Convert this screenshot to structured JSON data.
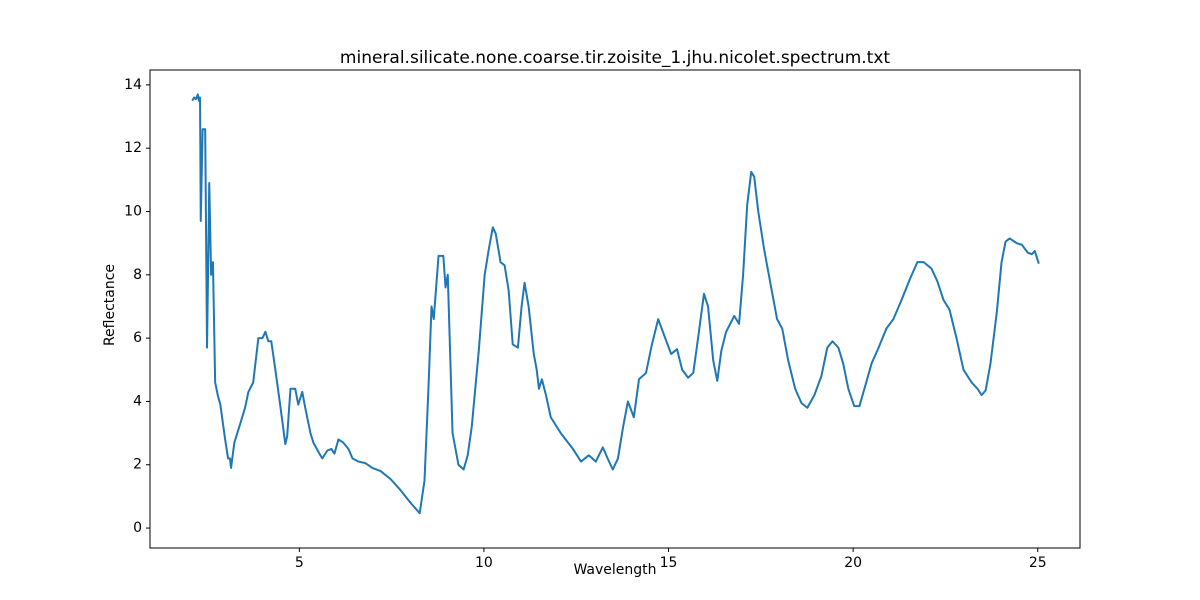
{
  "chart_data": {
    "type": "line",
    "title": "mineral.silicate.none.coarse.tir.zoisite_1.jhu.nicolet.spectrum.txt",
    "x_label": "Wavelength",
    "y_label": "Reflectance",
    "xlim": [
      0.955,
      26.145
    ],
    "ylim": [
      -0.63,
      14.47
    ],
    "xticks": [
      5,
      10,
      15,
      20,
      25
    ],
    "yticks": [
      0,
      2,
      4,
      6,
      8,
      10,
      12,
      14
    ],
    "grid": false,
    "x": [
      2.1,
      2.15,
      2.2,
      2.25,
      2.28,
      2.31,
      2.33,
      2.38,
      2.45,
      2.5,
      2.56,
      2.61,
      2.66,
      2.72,
      2.79,
      2.86,
      2.99,
      3.07,
      3.12,
      3.15,
      3.24,
      3.4,
      3.53,
      3.62,
      3.75,
      3.89,
      4.0,
      4.08,
      4.16,
      4.24,
      4.35,
      4.48,
      4.62,
      4.67,
      4.76,
      4.89,
      4.97,
      5.08,
      5.16,
      5.3,
      5.38,
      5.52,
      5.62,
      5.76,
      5.87,
      5.95,
      6.06,
      6.19,
      6.33,
      6.44,
      6.6,
      6.79,
      6.98,
      7.2,
      7.47,
      7.74,
      8.01,
      8.26,
      8.39,
      8.5,
      8.58,
      8.64,
      8.77,
      8.9,
      8.96,
      9.02,
      9.15,
      9.31,
      9.45,
      9.56,
      9.67,
      9.86,
      10.02,
      10.13,
      10.24,
      10.32,
      10.45,
      10.56,
      10.67,
      10.78,
      10.92,
      11.02,
      11.1,
      11.21,
      11.35,
      11.43,
      11.49,
      11.57,
      11.68,
      11.81,
      12.08,
      12.41,
      12.63,
      12.84,
      13.03,
      13.22,
      13.35,
      13.49,
      13.63,
      13.77,
      13.9,
      14.06,
      14.2,
      14.39,
      14.55,
      14.72,
      14.91,
      15.07,
      15.23,
      15.37,
      15.53,
      15.67,
      15.8,
      15.96,
      16.07,
      16.21,
      16.32,
      16.43,
      16.56,
      16.78,
      16.91,
      17.02,
      17.13,
      17.24,
      17.32,
      17.43,
      17.59,
      17.78,
      17.94,
      18.08,
      18.24,
      18.43,
      18.6,
      18.76,
      18.95,
      19.14,
      19.3,
      19.44,
      19.6,
      19.73,
      19.87,
      20.03,
      20.17,
      20.33,
      20.5,
      20.69,
      20.9,
      21.09,
      21.31,
      21.55,
      21.74,
      21.91,
      22.12,
      22.28,
      22.45,
      22.61,
      22.8,
      22.99,
      23.21,
      23.37,
      23.48,
      23.59,
      23.72,
      23.89,
      24.02,
      24.13,
      24.24,
      24.43,
      24.57,
      24.73,
      24.84,
      24.92,
      25.03
    ],
    "series": [
      {
        "name": "Reflectance",
        "color": "#1f77b4",
        "values": [
          13.5,
          13.6,
          13.55,
          13.7,
          13.5,
          13.6,
          9.7,
          12.6,
          12.6,
          5.7,
          10.9,
          8.0,
          8.4,
          4.6,
          4.2,
          3.9,
          2.8,
          2.2,
          2.2,
          1.9,
          2.7,
          3.3,
          3.8,
          4.3,
          4.6,
          6.0,
          6.0,
          6.2,
          5.9,
          5.9,
          5.0,
          3.9,
          2.65,
          2.9,
          4.4,
          4.4,
          3.9,
          4.3,
          3.8,
          3.0,
          2.7,
          2.4,
          2.2,
          2.45,
          2.5,
          2.35,
          2.8,
          2.7,
          2.5,
          2.2,
          2.1,
          2.05,
          1.9,
          1.8,
          1.55,
          1.2,
          0.8,
          0.47,
          1.5,
          4.5,
          7.0,
          6.6,
          8.6,
          8.6,
          7.6,
          8.0,
          3.0,
          2.0,
          1.85,
          2.3,
          3.2,
          5.6,
          8.0,
          8.8,
          9.5,
          9.3,
          8.4,
          8.3,
          7.5,
          5.8,
          5.7,
          7.0,
          7.75,
          7.0,
          5.5,
          5.0,
          4.4,
          4.7,
          4.2,
          3.5,
          3.0,
          2.5,
          2.1,
          2.3,
          2.1,
          2.55,
          2.2,
          1.85,
          2.2,
          3.2,
          4.0,
          3.5,
          4.7,
          4.9,
          5.8,
          6.6,
          6.0,
          5.5,
          5.65,
          5.0,
          4.75,
          4.9,
          6.0,
          7.4,
          7.0,
          5.3,
          4.65,
          5.6,
          6.2,
          6.7,
          6.45,
          8.0,
          10.2,
          11.25,
          11.1,
          10.0,
          8.8,
          7.6,
          6.6,
          6.3,
          5.3,
          4.4,
          3.95,
          3.8,
          4.2,
          4.8,
          5.7,
          5.9,
          5.7,
          5.2,
          4.4,
          3.85,
          3.85,
          4.5,
          5.2,
          5.7,
          6.3,
          6.6,
          7.2,
          7.9,
          8.4,
          8.4,
          8.2,
          7.8,
          7.2,
          6.9,
          6.0,
          5.0,
          4.6,
          4.4,
          4.2,
          4.35,
          5.2,
          6.8,
          8.4,
          9.05,
          9.15,
          9.0,
          8.95,
          8.7,
          8.65,
          8.75,
          8.35
        ]
      }
    ]
  }
}
